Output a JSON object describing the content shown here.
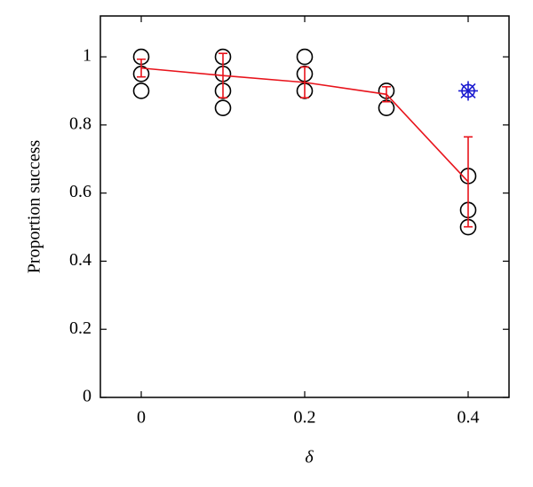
{
  "chart_data": {
    "type": "scatter",
    "x_label": "δ",
    "y_label": "Proportion success",
    "xlim": [
      -0.05,
      0.45
    ],
    "ylim": [
      0,
      1.12
    ],
    "xticks": [
      0,
      0.2,
      0.4
    ],
    "yticks": [
      0,
      0.2,
      0.4,
      0.6,
      0.8,
      1
    ],
    "points": {
      "color": "#000000",
      "x": [
        0,
        0,
        0,
        0.1,
        0.1,
        0.1,
        0.1,
        0.2,
        0.2,
        0.2,
        0.3,
        0.3,
        0.4,
        0.4,
        0.4
      ],
      "y": [
        1,
        0.95,
        0.9,
        1,
        0.95,
        0.9,
        0.85,
        1,
        0.95,
        0.9,
        0.9,
        0.85,
        0.65,
        0.55,
        0.5
      ]
    },
    "mean": {
      "color": "#e8141c",
      "x": [
        0,
        0.1,
        0.2,
        0.3,
        0.4
      ],
      "values": [
        0.967,
        0.945,
        0.925,
        0.89,
        0.633
      ],
      "errors": [
        0.026,
        0.065,
        0.045,
        0.022,
        0.132
      ]
    },
    "highlight": {
      "color": "#1a1ad0",
      "x": [
        0.4
      ],
      "y": [
        0.9
      ]
    }
  }
}
